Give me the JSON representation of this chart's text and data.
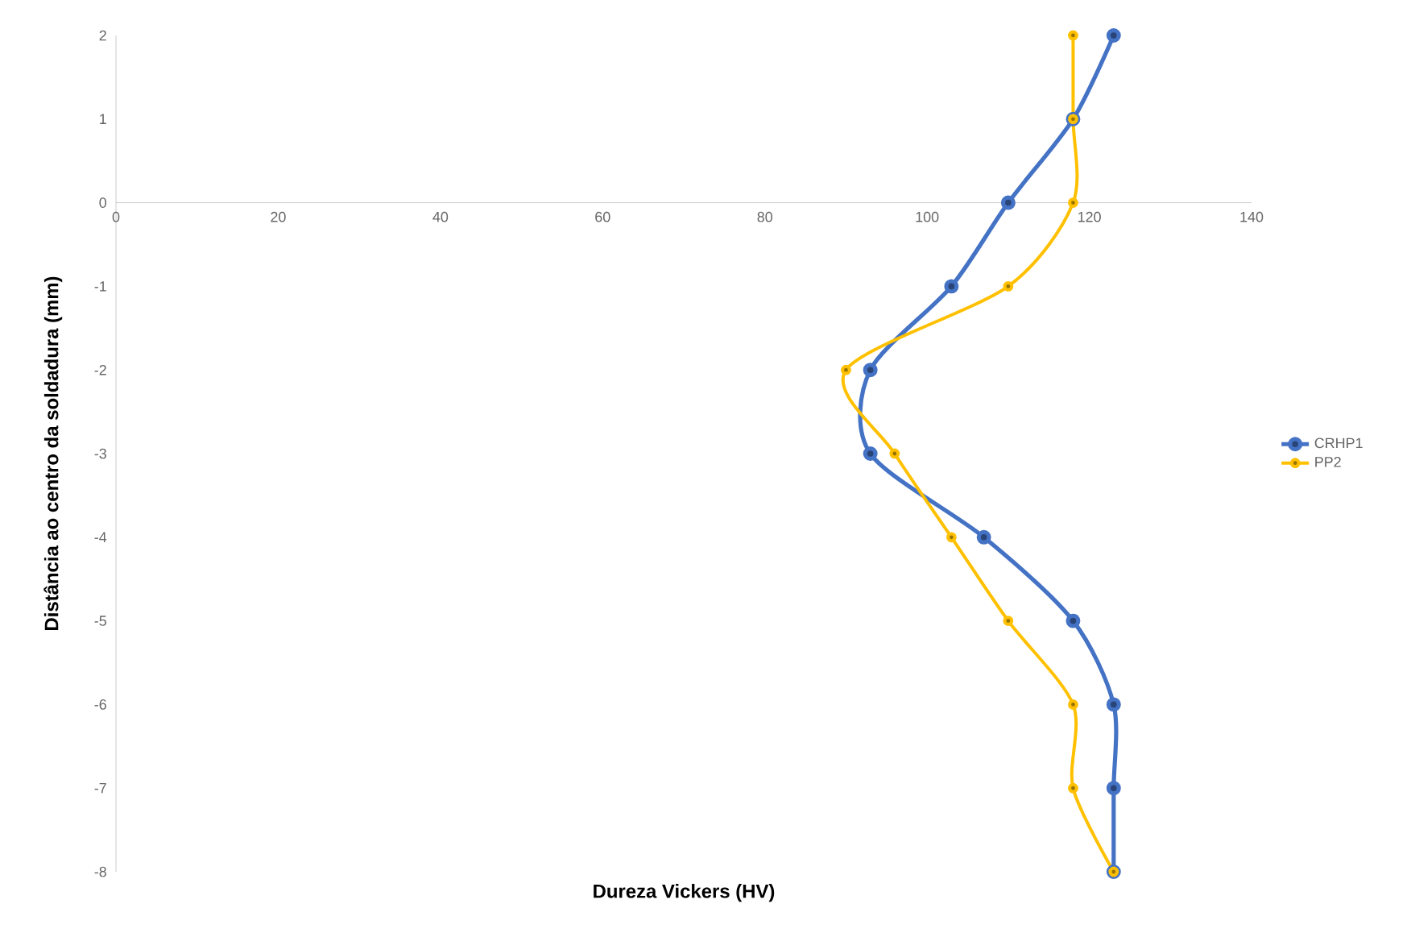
{
  "chart_data": {
    "type": "line",
    "xlabel": "Dureza Vickers (HV)",
    "ylabel": "Distância ao centro da soldadura (mm)",
    "series": [
      {
        "name": "CRHP1",
        "color": "#4472c4",
        "x": [
          123,
          118,
          110,
          103,
          93,
          93,
          107,
          118,
          123,
          123,
          123
        ],
        "values": [
          2,
          1,
          0,
          -1,
          -2,
          -3,
          -4,
          -5,
          -6,
          -7,
          -8
        ]
      },
      {
        "name": "PP2",
        "color": "#ffc000",
        "x": [
          118,
          118,
          118,
          110,
          90,
          96,
          103,
          110,
          118,
          118,
          123
        ],
        "values": [
          2,
          1,
          0,
          -1,
          -2,
          -3,
          -4,
          -5,
          -6,
          -7,
          -8
        ]
      }
    ],
    "xlim": [
      0,
      140
    ],
    "xticks": [
      0,
      20,
      40,
      60,
      80,
      100,
      120,
      140
    ],
    "ylim": [
      -8,
      2
    ],
    "yticks": [
      -8,
      -7,
      -6,
      -5,
      -4,
      -3,
      -2,
      -1,
      0,
      1,
      2
    ],
    "grid": false,
    "legend": "right",
    "marker": "circle",
    "line_style": "solid"
  }
}
